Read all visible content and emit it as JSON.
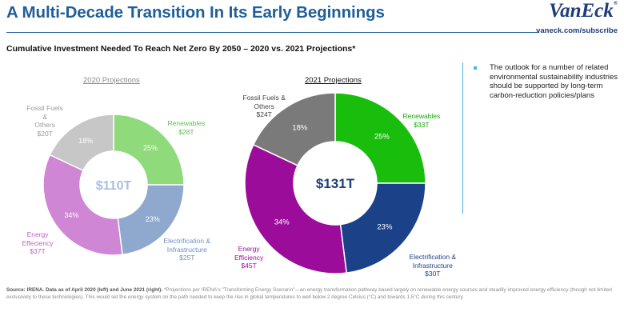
{
  "header": {
    "title": "A Multi-Decade Transition In Its Early Beginnings",
    "brand": "VanEck",
    "brand_mark": "®",
    "url": "vaneck.com/subscribe"
  },
  "subtitle": "Cumulative Investment Needed To Reach Net Zero By 2050 – 2020 vs. 2021 Projections*",
  "sidebar": {
    "text": "The outlook for a number of related environmental sustainability industries should be supported by long-term carbon-reduction policies/plans"
  },
  "source": {
    "lead": "Source: IRENA. Data as of April 2020 (left) and June 2021 (right).",
    "body": " *Projections per IRENA's \"Transforming Energy Scenario\"—an energy transformation pathway based largely on renewable energy sources and steadily improved energy efficiency (though not limited exclusively to these technologies). This would set the energy system on the path needed to keep the rise in global temperatures to well below 2 degree Celsius (°C) and towards 1.5°C during this century."
  },
  "chart_data": [
    {
      "type": "pie",
      "title": "2020 Projections",
      "total": "$110T",
      "categories": [
        "Renewables",
        "Electrification & Infrastructure",
        "Energy Effeciency",
        "Fossil Fuels & Others"
      ],
      "values": [
        25,
        23,
        34,
        18
      ],
      "pct_labels": [
        "25%",
        "23%",
        "34%",
        "18%"
      ],
      "amounts": [
        "$28T",
        "$25T",
        "$37T",
        "$20T"
      ],
      "label_lines": [
        [
          "Renewables"
        ],
        [
          "Electrification &",
          "Infrastructure"
        ],
        [
          "Energy",
          "Effeciency"
        ],
        [
          "Fossil Fuels",
          "&",
          "Others"
        ]
      ],
      "colors": [
        "#8fda7a",
        "#8fa8cd",
        "#cf86d4",
        "#c7c7c7"
      ],
      "label_color": "#9a9a9a"
    },
    {
      "type": "pie",
      "title": "2021 Projections",
      "total": "$131T",
      "categories": [
        "Renewables",
        "Electrification & Infrastructure",
        "Energy Efficiency",
        "Fossil Fuels & Others"
      ],
      "values": [
        25,
        23,
        34,
        18
      ],
      "pct_labels": [
        "25%",
        "23%",
        "34%",
        "18%"
      ],
      "amounts": [
        "$33T",
        "$30T",
        "$45T",
        "$24T"
      ],
      "label_lines": [
        [
          "Renewables"
        ],
        [
          "Electrification &",
          "Infrastructure"
        ],
        [
          "Energy",
          "Efficiency"
        ],
        [
          "Fossil Fuels &",
          "Others"
        ]
      ],
      "colors": [
        "#19bd0c",
        "#1b4288",
        "#9b0c9b",
        "#7a7a7a"
      ],
      "label_color": "#222222"
    }
  ]
}
